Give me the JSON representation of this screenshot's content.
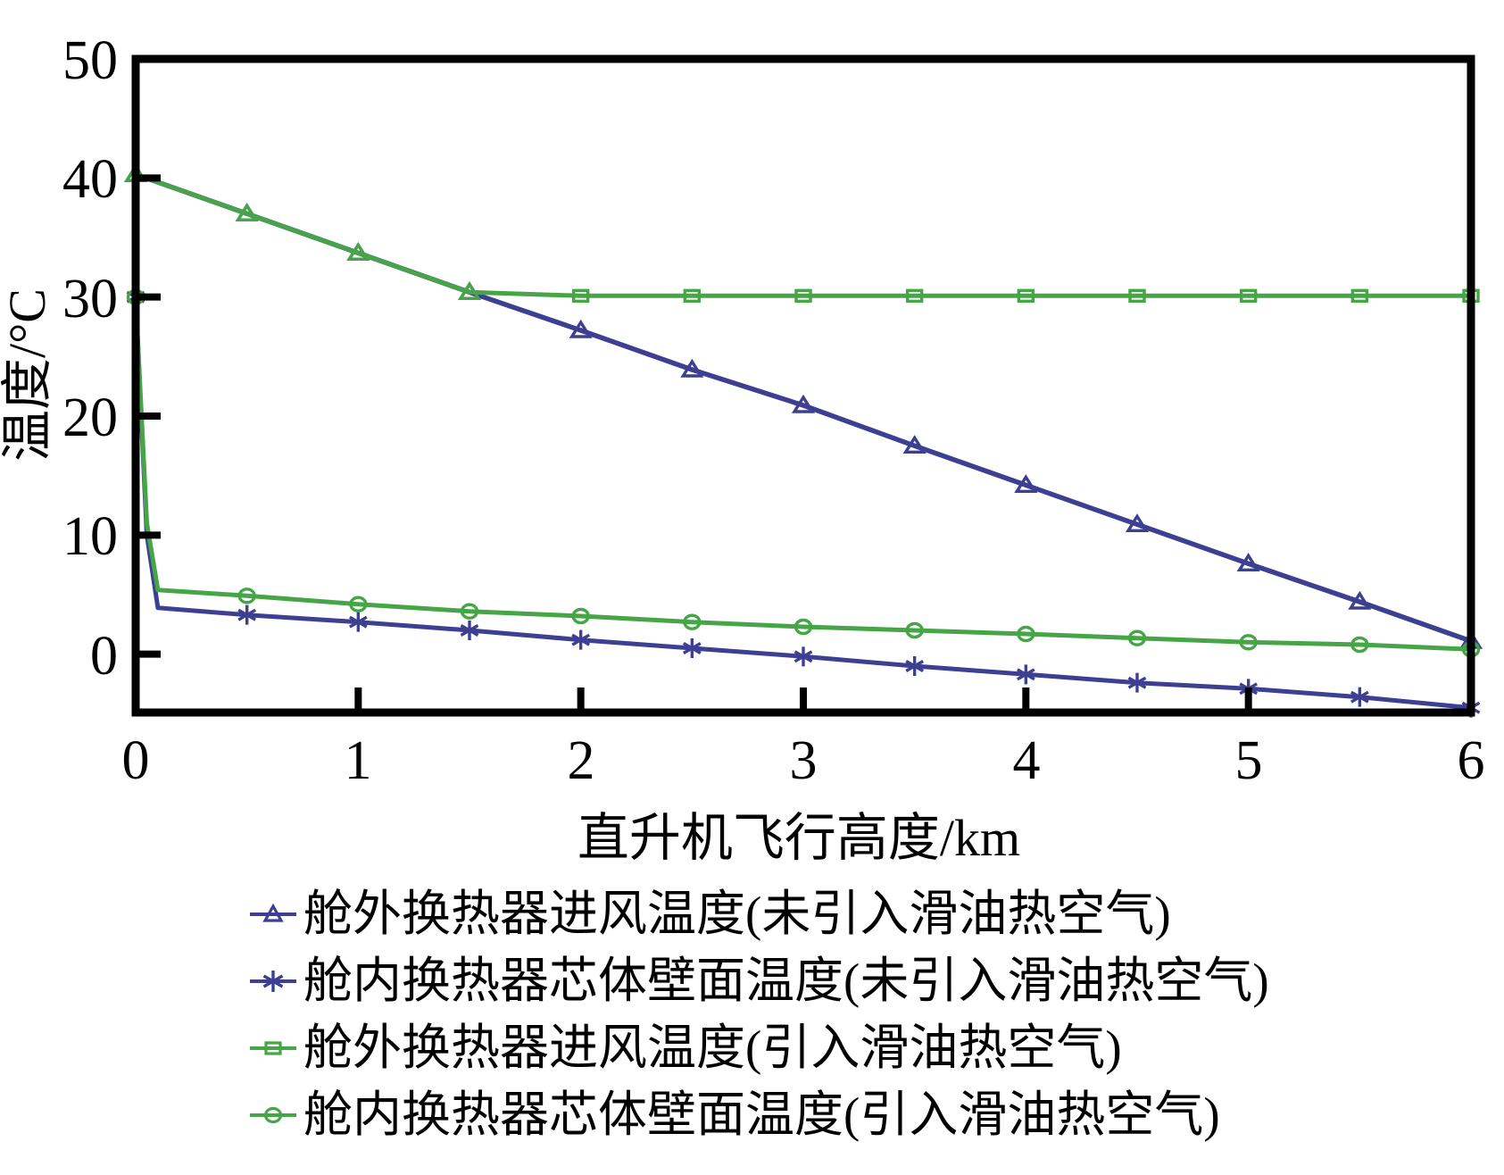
{
  "chart_data": {
    "type": "line",
    "title": "",
    "xlabel": "直升机飞行高度/km",
    "ylabel": "温度/°C",
    "xlim": [
      0,
      6
    ],
    "ylim": [
      -4.9,
      50
    ],
    "x_ticks": [
      0,
      1,
      2,
      3,
      4,
      5,
      6
    ],
    "y_ticks": [
      50,
      40,
      30,
      20,
      10,
      0
    ],
    "grid": false,
    "legend_position": "bottom-left",
    "axis_color": "#000000",
    "background_color": "#ffffff",
    "series": [
      {
        "name": "舱外换热器进风温度(未引入滑油热空气)",
        "color": "#3d3f93",
        "marker": "triangle",
        "x": [
          0,
          0.5,
          1,
          1.5,
          2,
          2.5,
          3,
          3.5,
          4,
          4.5,
          5,
          5.5,
          6
        ],
        "y": [
          40.3,
          37.0,
          33.7,
          30.4,
          27.2,
          23.9,
          20.9,
          17.5,
          14.2,
          10.9,
          7.6,
          4.4,
          1.1
        ],
        "marker_shapes": [
          "triangle",
          "triangle",
          "triangle",
          "triangle",
          "triangle",
          "triangle",
          "triangle",
          "triangle",
          "triangle",
          "triangle",
          "triangle",
          "triangle",
          "triangle"
        ]
      },
      {
        "name": "舱内换热器芯体壁面温度(未引入滑油热空气)",
        "color": "#3d3f93",
        "marker": "asterisk",
        "x": [
          0,
          0.05,
          0.1,
          0.5,
          1,
          1.5,
          2,
          2.5,
          3,
          3.5,
          4,
          4.5,
          5,
          5.5,
          6
        ],
        "y": [
          30,
          10,
          3.9,
          3.3,
          2.7,
          2.0,
          1.2,
          0.5,
          -0.2,
          -1.0,
          -1.7,
          -2.4,
          -2.9,
          -3.6,
          -4.5
        ],
        "marker_shapes": [
          "asterisk",
          null,
          null,
          "asterisk",
          "asterisk",
          "asterisk",
          "asterisk",
          "asterisk",
          "asterisk",
          "asterisk",
          "asterisk",
          "asterisk",
          "asterisk",
          "asterisk",
          "asterisk"
        ]
      },
      {
        "name": "舱外换热器进风温度(引入滑油热空气)",
        "color": "#46a546",
        "marker": "square",
        "x": [
          0,
          0.5,
          1,
          1.5,
          2,
          2.5,
          3,
          3.5,
          4,
          4.5,
          5,
          5.5,
          6
        ],
        "y": [
          40.3,
          37.0,
          33.7,
          30.4,
          30.1,
          30.1,
          30.1,
          30.1,
          30.1,
          30.1,
          30.1,
          30.1,
          30.1
        ],
        "marker_shapes": [
          "triangle",
          "triangle",
          "triangle",
          "triangle",
          "square",
          "square",
          "square",
          "square",
          "square",
          "square",
          "square",
          "square",
          "square"
        ]
      },
      {
        "name": "舱内换热器芯体壁面温度(引入滑油热空气)",
        "color": "#46a546",
        "marker": "circle",
        "x": [
          0,
          0.05,
          0.1,
          0.5,
          1,
          1.5,
          2,
          2.5,
          3,
          3.5,
          4,
          4.5,
          5,
          5.5,
          6
        ],
        "y": [
          30,
          11,
          5.4,
          4.9,
          4.2,
          3.6,
          3.2,
          2.7,
          2.3,
          2.0,
          1.7,
          1.35,
          1.0,
          0.8,
          0.4
        ],
        "marker_shapes": [
          "circle",
          null,
          null,
          "circle",
          "circle",
          "circle",
          "circle",
          "circle",
          "circle",
          "circle",
          "circle",
          "circle",
          "circle",
          "circle",
          "circle"
        ]
      }
    ]
  }
}
